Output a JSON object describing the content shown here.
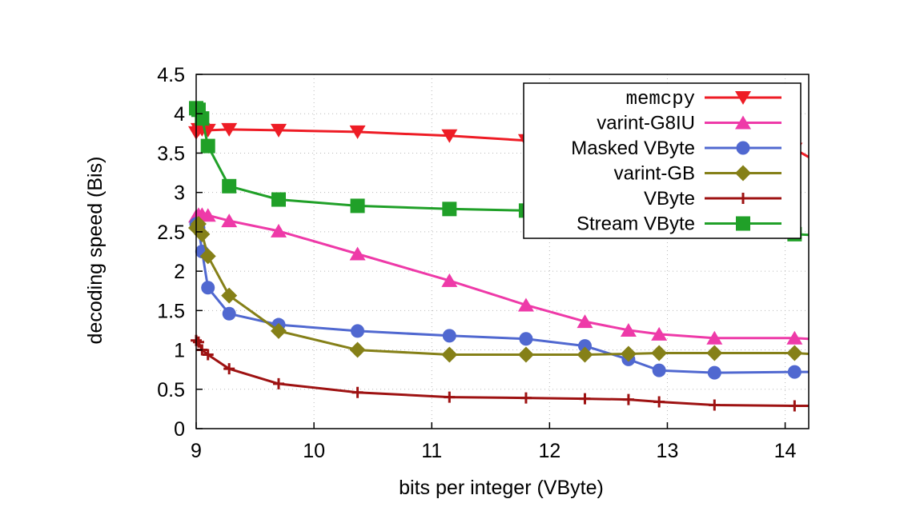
{
  "chart_data": {
    "type": "line",
    "title": "",
    "xlabel": "bits per integer (VByte)",
    "ylabel": "decoding speed (Bis)",
    "xlim": [
      9,
      14.2
    ],
    "ylim": [
      0,
      4.5
    ],
    "xticks": [
      9,
      10,
      11,
      12,
      13,
      14
    ],
    "xtick_labels": [
      "9",
      "10",
      "11",
      "12",
      "13",
      "14"
    ],
    "yticks": [
      0,
      0.5,
      1,
      1.5,
      2,
      2.5,
      3,
      3.5,
      4,
      4.5
    ],
    "ytick_labels": [
      "0",
      "0.5",
      "1",
      "1.5",
      "2",
      "2.5",
      "3",
      "3.5",
      "4",
      "4.5"
    ],
    "grid": true,
    "legend_position": "top-right",
    "series": [
      {
        "name": "memcpy",
        "color": "#ee1c25",
        "marker": "triangle-down",
        "x": [
          9.0,
          9.02,
          9.05,
          9.1,
          9.28,
          9.7,
          10.37,
          11.15,
          11.8,
          12.3,
          12.67,
          12.93,
          13.4,
          14.08,
          14.2
        ],
        "y": [
          3.76,
          3.8,
          3.8,
          3.79,
          3.8,
          3.79,
          3.77,
          3.72,
          3.66,
          3.63,
          3.6,
          3.58,
          3.56,
          3.55,
          3.45
        ]
      },
      {
        "name": "varint-G8IU",
        "color": "#ee3aa8",
        "marker": "triangle-up",
        "x": [
          9.0,
          9.02,
          9.05,
          9.1,
          9.28,
          9.7,
          10.37,
          11.15,
          11.8,
          12.3,
          12.67,
          12.93,
          13.4,
          14.08,
          14.2
        ],
        "y": [
          2.7,
          2.72,
          2.72,
          2.71,
          2.64,
          2.51,
          2.22,
          1.88,
          1.57,
          1.36,
          1.25,
          1.2,
          1.15,
          1.15,
          1.14
        ]
      },
      {
        "name": "Masked VByte",
        "color": "#5068d0",
        "marker": "circle",
        "x": [
          9.0,
          9.02,
          9.05,
          9.1,
          9.28,
          9.7,
          10.37,
          11.15,
          11.8,
          12.3,
          12.67,
          12.93,
          13.4,
          14.08,
          14.2
        ],
        "y": [
          2.6,
          2.55,
          2.25,
          1.79,
          1.46,
          1.32,
          1.24,
          1.18,
          1.14,
          1.05,
          0.88,
          0.74,
          0.71,
          0.72,
          0.72
        ]
      },
      {
        "name": "varint-GB",
        "color": "#858018",
        "marker": "diamond",
        "x": [
          9.0,
          9.02,
          9.05,
          9.1,
          9.28,
          9.7,
          10.37,
          11.15,
          11.8,
          12.3,
          12.67,
          12.93,
          13.4,
          14.08,
          14.2
        ],
        "y": [
          2.55,
          2.6,
          2.47,
          2.19,
          1.69,
          1.24,
          1.0,
          0.94,
          0.94,
          0.94,
          0.95,
          0.96,
          0.96,
          0.96,
          0.95
        ]
      },
      {
        "name": "VByte",
        "color": "#9e1212",
        "marker": "plus",
        "x": [
          9.0,
          9.02,
          9.05,
          9.1,
          9.28,
          9.7,
          10.37,
          11.15,
          11.8,
          12.3,
          12.67,
          12.93,
          13.4,
          14.08,
          14.2
        ],
        "y": [
          1.12,
          1.1,
          1.0,
          0.94,
          0.76,
          0.57,
          0.46,
          0.4,
          0.39,
          0.38,
          0.37,
          0.34,
          0.3,
          0.29,
          0.29
        ]
      },
      {
        "name": "Stream VByte",
        "color": "#20a028",
        "marker": "square",
        "x": [
          9.0,
          9.02,
          9.05,
          9.1,
          9.28,
          9.7,
          10.37,
          11.15,
          11.8,
          12.3,
          12.67,
          12.93,
          13.4,
          14.08,
          14.2
        ],
        "y": [
          4.07,
          4.05,
          3.94,
          3.59,
          3.08,
          2.91,
          2.83,
          2.79,
          2.77,
          2.7,
          2.64,
          2.59,
          2.52,
          2.47,
          2.46
        ]
      }
    ]
  }
}
